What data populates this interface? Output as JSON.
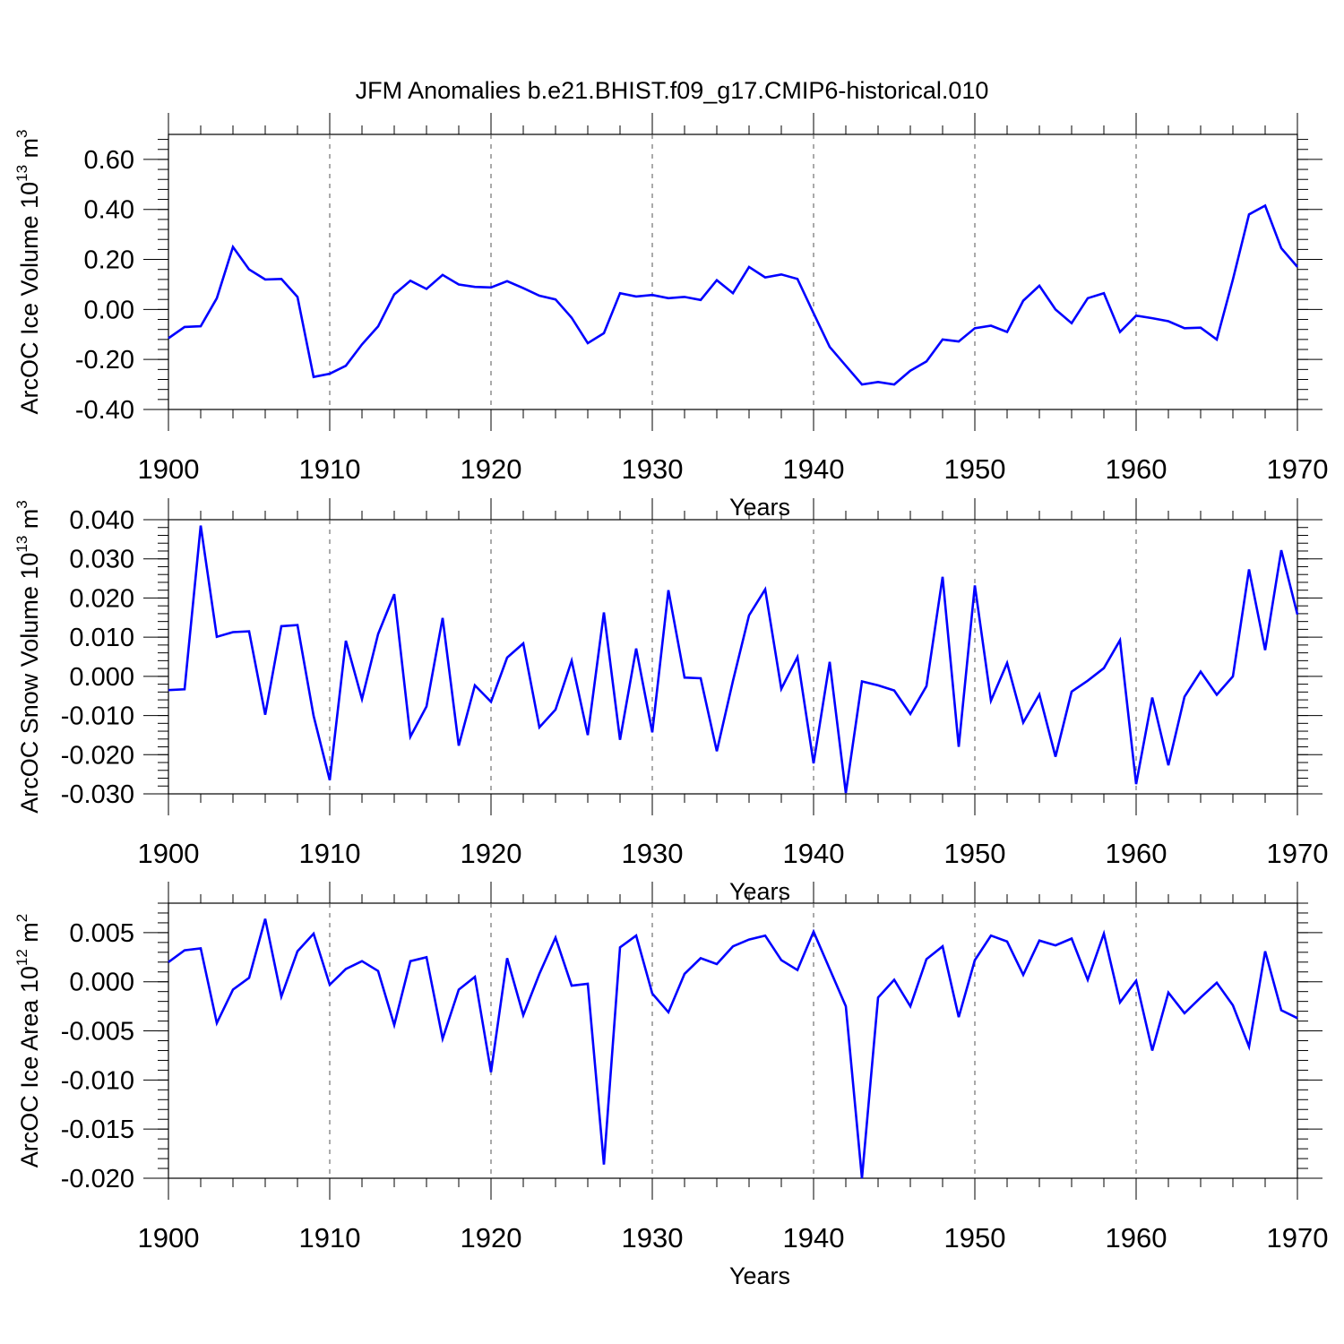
{
  "title": "JFM Anomalies b.e21.BHIST.f09_g17.CMIP6-historical.010",
  "series_color": "#0000ff",
  "chart_data": [
    {
      "type": "line",
      "name": "ice-volume",
      "ylabel": "ArcOC Ice Volume 10",
      "ylabel_sup": "13",
      "ylabel_unit": " m",
      "ylabel_unit_sup": "3",
      "xlabel": "Years",
      "xlim": [
        1900,
        1970
      ],
      "ylim": [
        -0.4,
        0.7
      ],
      "yticks": [
        -0.4,
        -0.2,
        0.0,
        0.2,
        0.4,
        0.6
      ],
      "ytick_labels": [
        "-0.40",
        "-0.20",
        "0.00",
        "0.20",
        "0.40",
        "0.60"
      ],
      "xticks": [
        1900,
        1910,
        1920,
        1930,
        1940,
        1950,
        1960,
        1970
      ],
      "xtick_labels": [
        "1900",
        "1910",
        "1920",
        "1930",
        "1940",
        "1950",
        "1960",
        "1970"
      ],
      "x": [
        1900,
        1901,
        1902,
        1903,
        1904,
        1905,
        1906,
        1907,
        1908,
        1909,
        1910,
        1911,
        1912,
        1913,
        1914,
        1915,
        1916,
        1917,
        1918,
        1919,
        1920,
        1921,
        1922,
        1923,
        1924,
        1925,
        1926,
        1927,
        1928,
        1929,
        1930,
        1931,
        1932,
        1933,
        1934,
        1935,
        1936,
        1937,
        1938,
        1939,
        1940,
        1941,
        1942,
        1943,
        1944,
        1945,
        1946,
        1947,
        1948,
        1949,
        1950,
        1951,
        1952,
        1953,
        1954,
        1955,
        1956,
        1957,
        1958,
        1959,
        1960,
        1961,
        1962,
        1963,
        1964,
        1965,
        1966,
        1967,
        1968,
        1969,
        1970
      ],
      "values": [
        -0.115,
        -0.07,
        -0.067,
        0.045,
        0.25,
        0.16,
        0.12,
        0.122,
        0.05,
        -0.27,
        -0.257,
        -0.225,
        -0.14,
        -0.068,
        0.06,
        0.115,
        0.082,
        0.138,
        0.1,
        0.09,
        0.088,
        0.113,
        0.085,
        0.055,
        0.04,
        -0.033,
        -0.135,
        -0.095,
        0.065,
        0.052,
        0.058,
        0.045,
        0.05,
        0.038,
        0.117,
        0.065,
        0.17,
        0.128,
        0.14,
        0.122,
        -0.015,
        -0.15,
        -0.225,
        -0.3,
        -0.29,
        -0.3,
        -0.245,
        -0.208,
        -0.12,
        -0.128,
        -0.075,
        -0.065,
        -0.09,
        0.035,
        0.095,
        0.0,
        -0.055,
        0.045,
        0.065,
        -0.09,
        -0.025,
        -0.035,
        -0.047,
        -0.075,
        -0.073,
        -0.12,
        0.12,
        0.38,
        0.415,
        0.245,
        0.17
      ]
    },
    {
      "type": "line",
      "name": "snow-volume",
      "ylabel": "ArcOC Snow Volume 10",
      "ylabel_sup": "13",
      "ylabel_unit": " m",
      "ylabel_unit_sup": "3",
      "xlabel": "Years",
      "xlim": [
        1900,
        1970
      ],
      "ylim": [
        -0.03,
        0.04
      ],
      "yticks": [
        -0.03,
        -0.02,
        -0.01,
        0.0,
        0.01,
        0.02,
        0.03,
        0.04
      ],
      "ytick_labels": [
        "-0.030",
        "-0.020",
        "-0.010",
        "0.000",
        "0.010",
        "0.020",
        "0.030",
        "0.040"
      ],
      "xticks": [
        1900,
        1910,
        1920,
        1930,
        1940,
        1950,
        1960,
        1970
      ],
      "xtick_labels": [
        "1900",
        "1910",
        "1920",
        "1930",
        "1940",
        "1950",
        "1960",
        "1970"
      ],
      "x": [
        1900,
        1901,
        1902,
        1903,
        1904,
        1905,
        1906,
        1907,
        1908,
        1909,
        1910,
        1911,
        1912,
        1913,
        1914,
        1915,
        1916,
        1917,
        1918,
        1919,
        1920,
        1921,
        1922,
        1923,
        1924,
        1925,
        1926,
        1927,
        1928,
        1929,
        1930,
        1931,
        1932,
        1933,
        1934,
        1935,
        1936,
        1937,
        1938,
        1939,
        1940,
        1941,
        1942,
        1943,
        1944,
        1945,
        1946,
        1947,
        1948,
        1949,
        1950,
        1951,
        1952,
        1953,
        1954,
        1955,
        1956,
        1957,
        1958,
        1959,
        1960,
        1961,
        1962,
        1963,
        1964,
        1965,
        1966,
        1967,
        1968,
        1969,
        1970
      ],
      "values": [
        -0.0035,
        -0.0033,
        0.0385,
        0.0101,
        0.0113,
        0.0115,
        -0.0098,
        0.0128,
        0.0131,
        -0.0101,
        -0.0265,
        0.0091,
        -0.0058,
        0.0108,
        0.021,
        -0.0154,
        -0.0077,
        0.0149,
        -0.0177,
        -0.0023,
        -0.0065,
        0.0048,
        0.0084,
        -0.013,
        -0.0085,
        0.004,
        -0.015,
        0.0163,
        -0.0162,
        0.0071,
        -0.0143,
        0.022,
        -0.0003,
        -0.0005,
        -0.0191,
        -0.0012,
        0.0156,
        0.0222,
        -0.0032,
        0.0049,
        -0.0222,
        0.0037,
        -0.0298,
        -0.0013,
        -0.0023,
        -0.0036,
        -0.0096,
        -0.0025,
        0.0254,
        -0.018,
        0.0232,
        -0.0062,
        0.0034,
        -0.0118,
        -0.0046,
        -0.0205,
        -0.0039,
        -0.0011,
        0.0021,
        0.0092,
        -0.0275,
        -0.0054,
        -0.0227,
        -0.0052,
        0.0012,
        -0.0047,
        0.0,
        0.0273,
        0.0067,
        0.0322,
        0.0158
      ]
    },
    {
      "type": "line",
      "name": "ice-area",
      "ylabel": "ArcOC Ice Area 10",
      "ylabel_sup": "12",
      "ylabel_unit": " m",
      "ylabel_unit_sup": "2",
      "xlabel": "Years",
      "xlim": [
        1900,
        1970
      ],
      "ylim": [
        -0.02,
        0.008
      ],
      "yticks": [
        -0.02,
        -0.015,
        -0.01,
        -0.005,
        0.0,
        0.005
      ],
      "ytick_labels": [
        "-0.020",
        "-0.015",
        "-0.010",
        "-0.005",
        "0.000",
        "0.005"
      ],
      "xticks": [
        1900,
        1910,
        1920,
        1930,
        1940,
        1950,
        1960,
        1970
      ],
      "xtick_labels": [
        "1900",
        "1910",
        "1920",
        "1930",
        "1940",
        "1950",
        "1960",
        "1970"
      ],
      "x": [
        1900,
        1901,
        1902,
        1903,
        1904,
        1905,
        1906,
        1907,
        1908,
        1909,
        1910,
        1911,
        1912,
        1913,
        1914,
        1915,
        1916,
        1917,
        1918,
        1919,
        1920,
        1921,
        1922,
        1923,
        1924,
        1925,
        1926,
        1927,
        1928,
        1929,
        1930,
        1931,
        1932,
        1933,
        1934,
        1935,
        1936,
        1937,
        1938,
        1939,
        1940,
        1941,
        1942,
        1943,
        1944,
        1945,
        1946,
        1947,
        1948,
        1949,
        1950,
        1951,
        1952,
        1953,
        1954,
        1955,
        1956,
        1957,
        1958,
        1959,
        1960,
        1961,
        1962,
        1963,
        1964,
        1965,
        1966,
        1967,
        1968,
        1969,
        1970
      ],
      "values": [
        0.002,
        0.0032,
        0.0034,
        -0.0042,
        -0.0008,
        0.0004,
        0.0064,
        -0.0015,
        0.0031,
        0.0049,
        -0.0003,
        0.0013,
        0.0021,
        0.0011,
        -0.0044,
        0.0021,
        0.0025,
        -0.0058,
        -0.0008,
        0.0005,
        -0.0092,
        0.0024,
        -0.0034,
        0.0008,
        0.0045,
        -0.0004,
        -0.0002,
        -0.0186,
        0.0035,
        0.0047,
        -0.0012,
        -0.0031,
        0.0008,
        0.0024,
        0.0018,
        0.0036,
        0.0043,
        0.0047,
        0.0022,
        0.0012,
        0.0051,
        0.0013,
        -0.0025,
        -0.02,
        -0.0016,
        0.0002,
        -0.0025,
        0.0023,
        0.0036,
        -0.0036,
        0.0022,
        0.0047,
        0.0041,
        0.0007,
        0.0042,
        0.0037,
        0.0044,
        0.0002,
        0.0049,
        -0.0021,
        0.0001,
        -0.007,
        -0.0011,
        -0.0032,
        -0.0016,
        -0.0001,
        -0.0024,
        -0.0066,
        0.0031,
        -0.0029,
        -0.0037
      ]
    }
  ]
}
